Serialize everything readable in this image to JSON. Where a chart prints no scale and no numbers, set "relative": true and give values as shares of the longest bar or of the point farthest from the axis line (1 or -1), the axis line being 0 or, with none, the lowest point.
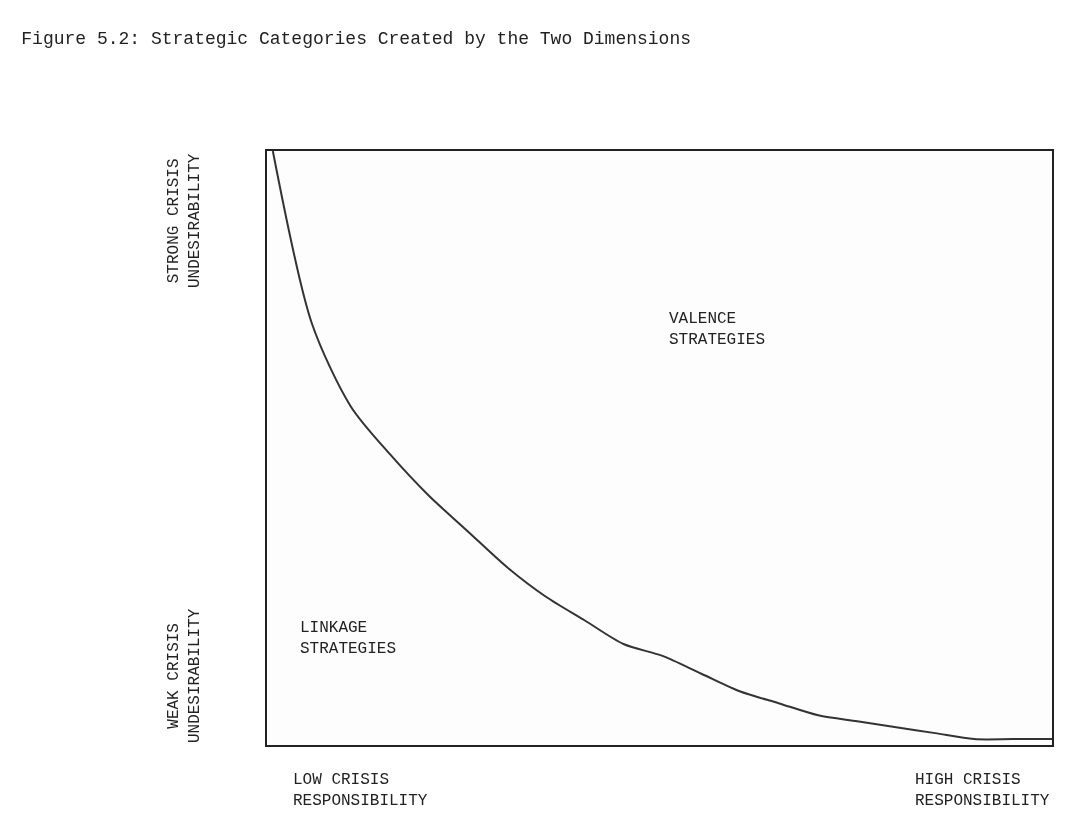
{
  "chart_data": {
    "type": "line",
    "relative": true,
    "title": "Figure 5.2: Strategic Categories Created by the Two Dimensions",
    "categories": [
      null,
      null,
      null,
      null,
      null,
      null,
      null,
      null,
      null,
      null,
      null,
      null,
      null,
      null,
      null,
      null,
      null,
      null,
      null,
      null,
      null
    ],
    "series": [
      {
        "color": "#333333",
        "values": [
          1.0,
          0.71,
          0.57,
          0.49,
          0.42,
          0.36,
          0.3,
          0.25,
          0.21,
          0.17,
          0.15,
          0.12,
          0.09,
          0.07,
          0.05,
          0.04,
          0.03,
          0.02,
          0.01,
          0.01,
          0.01
        ]
      }
    ],
    "annotations": [
      "VALENCE\nSTRATEGIES",
      "LINKAGE\nSTRATEGIES",
      "LOW CRISIS\nRESPONSIBILITY",
      "HIGH CRISIS\nRESPONSIBILITY",
      "STRONG CRISIS\nUNDESIRABILITY",
      "WEAK CRISIS\nUNDESIRABILITY"
    ],
    "marker": "none",
    "line_style": "solid"
  }
}
